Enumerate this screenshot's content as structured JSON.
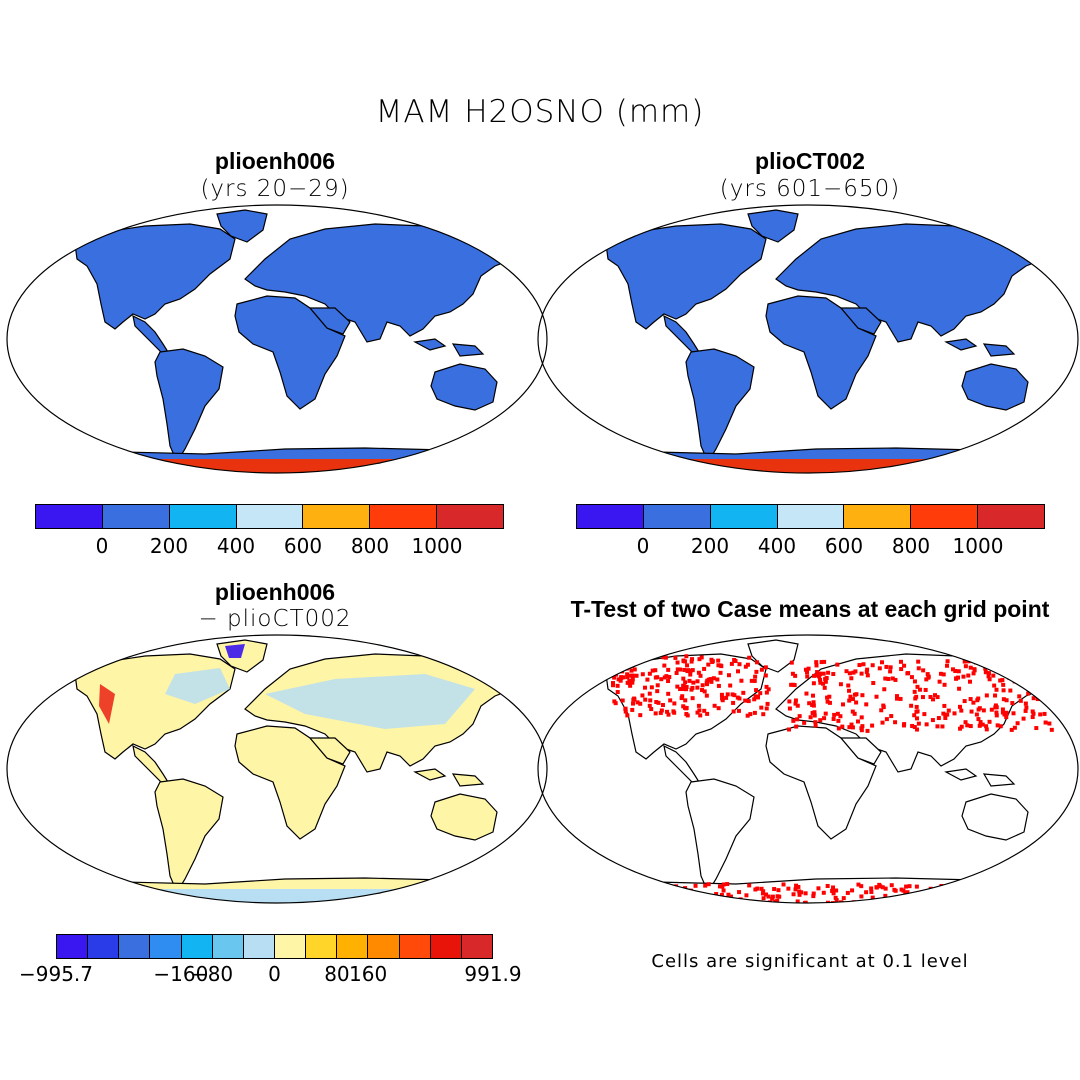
{
  "title": "MAM H2OSNO (mm)",
  "panels": {
    "top_left": {
      "title": "plioenh006",
      "subtitle": "(yrs 20−29)"
    },
    "top_right": {
      "title": "plioCT002",
      "subtitle": "(yrs 601−650)"
    },
    "bottom_left": {
      "title": "plioenh006",
      "subtitle": "− plioCT002"
    },
    "bottom_right": {
      "title": "T-Test of two Case means at each grid point",
      "note": "Cells are significant at 0.1 level"
    }
  },
  "colorbars": {
    "absolute": {
      "colors": [
        "#3a16f0",
        "#3a6fe0",
        "#12b4f2",
        "#c5e6f6",
        "#fdb00f",
        "#ff3c0a",
        "#d8282a"
      ],
      "ticks": [
        "0",
        "200",
        "400",
        "600",
        "800",
        "1000"
      ]
    },
    "difference": {
      "colors": [
        "#3a16f0",
        "#2a3ce8",
        "#3a6fe0",
        "#2f8cf0",
        "#12b4f2",
        "#69c6ee",
        "#b7def2",
        "#fff5a6",
        "#ffd52a",
        "#ffb000",
        "#ff8a00",
        "#ff4a0a",
        "#e8140a",
        "#d8282a"
      ],
      "ticks": [
        "−995.7",
        "−160",
        "−80",
        "0",
        "80",
        "160",
        "991.9"
      ]
    },
    "colors": {
      "land_absolute": "#3a6fe0",
      "antarctica_absolute": "#e8330e",
      "land_difference": "#fff5a6",
      "significant": "#ff0000",
      "coast": "#000000"
    }
  }
}
